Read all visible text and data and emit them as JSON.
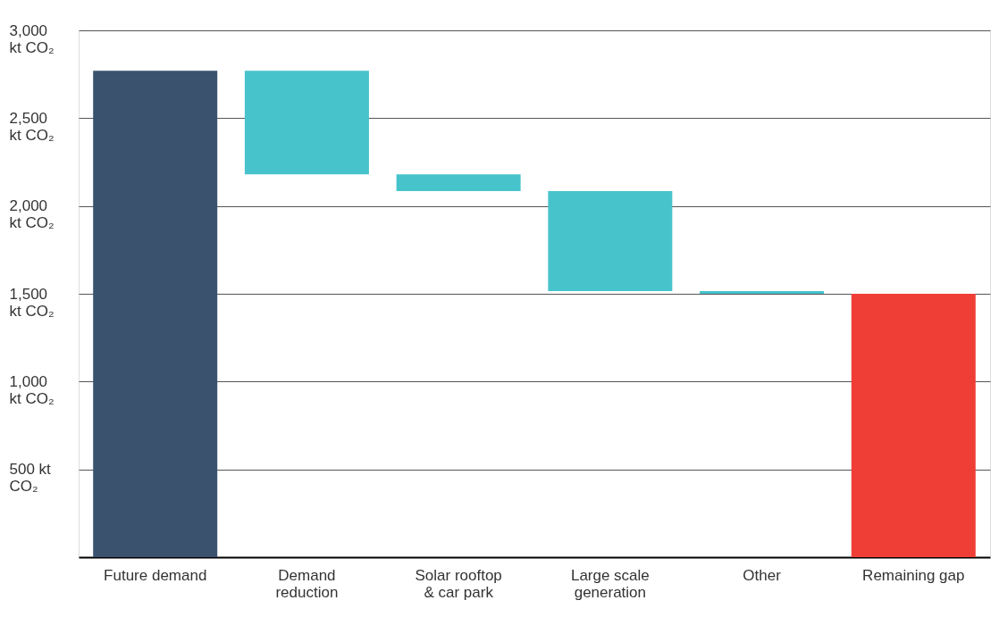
{
  "chart_data": {
    "type": "bar",
    "categories": [
      "Future demand",
      "Demand reduction",
      "Solar rooftop & car park",
      "Large scale generation",
      "Other",
      "Remaining gap"
    ],
    "values": [
      2770,
      -590,
      -95,
      -570,
      -15,
      1500
    ],
    "base": [
      0,
      2770,
      2180,
      2085,
      1515,
      0
    ],
    "colors": [
      "#3a526e",
      "#47c3cc",
      "#47c3cc",
      "#47c3cc",
      "#47c3cc",
      "#ef3e36"
    ],
    "ylim": [
      0,
      3000
    ],
    "yticks": [
      {
        "value": 500,
        "label": "500 kt CO₂"
      },
      {
        "value": 1000,
        "label": "1,000 kt CO₂"
      },
      {
        "value": 1500,
        "label": "1,500 kt CO₂"
      },
      {
        "value": 2000,
        "label": "2,000 kt CO₂"
      },
      {
        "value": 2500,
        "label": "2,500 kt CO₂"
      },
      {
        "value": 3000,
        "label": "3,000 kt CO₂"
      }
    ],
    "grid": "y"
  }
}
